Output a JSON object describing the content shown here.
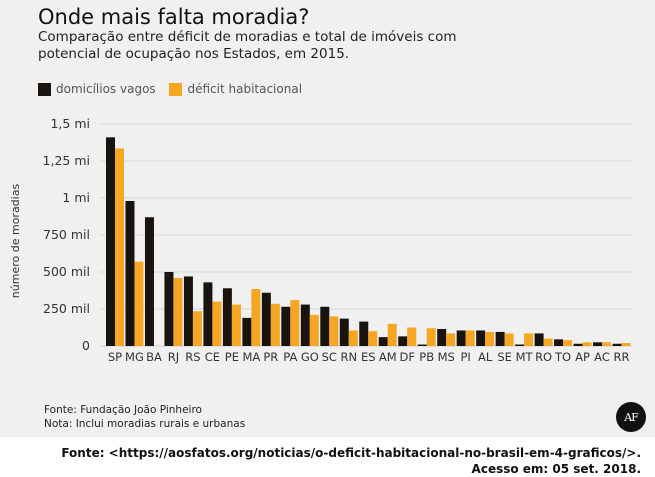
{
  "title": "Onde mais falta moradia?",
  "subtitle": "Comparação entre déficit de moradias e total de imóveis com potencial de ocupação nos Estados, em 2015.",
  "legend": [
    {
      "label": "domicílios vagos",
      "color": "#1a1410"
    },
    {
      "label": "déficit habitacional",
      "color": "#f5a623"
    }
  ],
  "footer": {
    "source": "Fonte: Fundação João Pinheiro",
    "note": "Nota: Inclui moradias rurais e urbanas"
  },
  "logo_text": "AF",
  "citation": {
    "line1": "Fonte: <https://aosfatos.org/noticias/o-deficit-habitacional-no-brasil-em-4-graficos/>.",
    "line2": "Acesso em: 05 set. 2018."
  },
  "chart_data": {
    "type": "bar",
    "ylabel": "número de moradias",
    "ylim": [
      0,
      1500000
    ],
    "yticks": [
      {
        "value": 0,
        "label": "0"
      },
      {
        "value": 250000,
        "label": "250 mil"
      },
      {
        "value": 500000,
        "label": "500 mil"
      },
      {
        "value": 750000,
        "label": "750 mil"
      },
      {
        "value": 1000000,
        "label": "1 mi"
      },
      {
        "value": 1250000,
        "label": "1,25 mi"
      },
      {
        "value": 1500000,
        "label": "1,5 mi"
      }
    ],
    "grid": true,
    "legend_position": "top-left",
    "categories": [
      "SP",
      "MG",
      "BA",
      "RJ",
      "RS",
      "CE",
      "PE",
      "MA",
      "PR",
      "PA",
      "GO",
      "SC",
      "RN",
      "ES",
      "AM",
      "DF",
      "PB",
      "MS",
      "PI",
      "AL",
      "SE",
      "MT",
      "RO",
      "TO",
      "AP",
      "AC",
      "RR"
    ],
    "series": [
      {
        "name": "domicílios vagos",
        "color": "#1a1410",
        "values": [
          1410000,
          980000,
          870000,
          500000,
          470000,
          430000,
          390000,
          190000,
          360000,
          265000,
          280000,
          265000,
          185000,
          165000,
          60000,
          65000,
          10000,
          115000,
          105000,
          105000,
          95000,
          10000,
          85000,
          45000,
          15000,
          25000,
          15000
        ]
      },
      {
        "name": "déficit habitacional",
        "color": "#f5a623",
        "values": [
          1335000,
          570000,
          0,
          460000,
          235000,
          300000,
          280000,
          385000,
          285000,
          310000,
          210000,
          200000,
          105000,
          100000,
          150000,
          125000,
          120000,
          85000,
          105000,
          95000,
          85000,
          85000,
          50000,
          40000,
          25000,
          25000,
          20000
        ]
      }
    ]
  }
}
